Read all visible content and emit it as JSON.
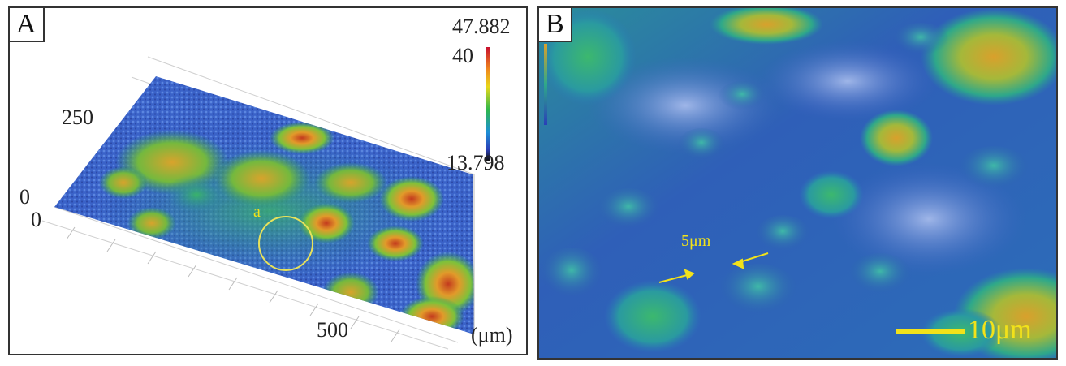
{
  "panel_a": {
    "label": "A",
    "colorbar": {
      "max": "47.882",
      "mid": "40",
      "min": "13.798"
    },
    "axis": {
      "tick_250": "250",
      "tick_0_upper": "0",
      "tick_0_lower": "0",
      "tick_500": "500",
      "unit": "(μm)"
    },
    "marker": "a"
  },
  "panel_b": {
    "label": "B",
    "annotation": "5μm",
    "scale_bar": "10μm"
  }
}
